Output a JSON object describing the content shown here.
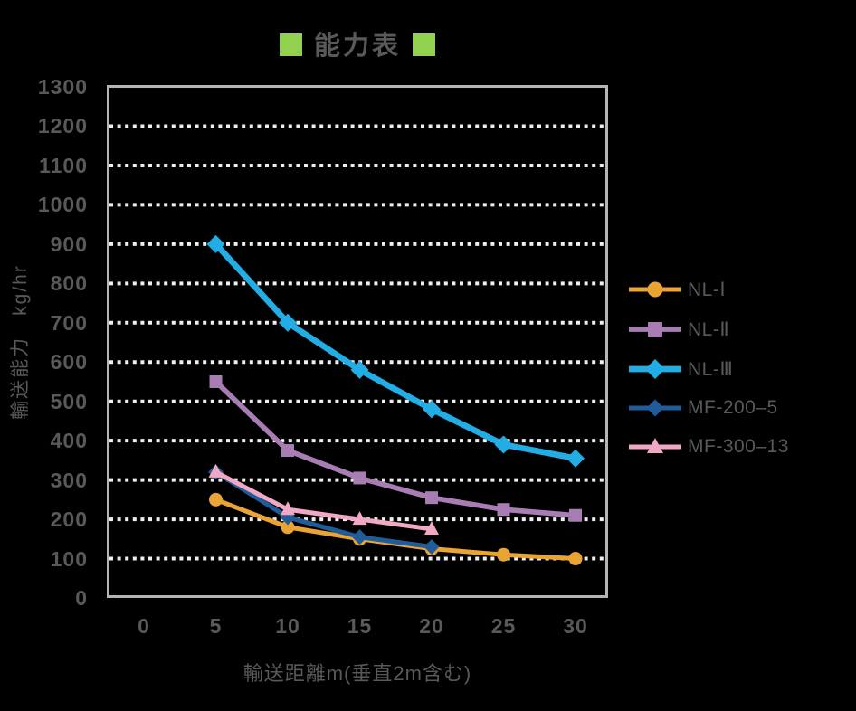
{
  "title": {
    "text": "能力表",
    "square_color": "#92D050"
  },
  "colors": {
    "background": "#000000",
    "text": "#595959",
    "gridline": "#EFEFEF",
    "plot_border": "#B5B5B5"
  },
  "chart_data": {
    "type": "line",
    "title": "能力表",
    "xlabel": "輸送距離m(垂直2m含む)",
    "ylabel": "輸送能力　kg/hr",
    "x_ticks": [
      0,
      5,
      10,
      15,
      20,
      25,
      30
    ],
    "y_ticks": [
      0,
      100,
      200,
      300,
      400,
      500,
      600,
      700,
      800,
      900,
      1000,
      1100,
      1200,
      1300
    ],
    "xlim": [
      0,
      32
    ],
    "ylim": [
      0,
      1300
    ],
    "grid": "horizontal dotted white lines every 100",
    "legend_position": "right",
    "series": [
      {
        "name": "NL-Ⅰ",
        "color": "#EAA434",
        "marker": "circle",
        "x": [
          5,
          10,
          15,
          20,
          25,
          30
        ],
        "values": [
          250,
          180,
          150,
          125,
          110,
          100
        ]
      },
      {
        "name": "NL-Ⅱ",
        "color": "#A87DB3",
        "marker": "square",
        "x": [
          5,
          10,
          15,
          20,
          25,
          30
        ],
        "values": [
          550,
          375,
          305,
          255,
          225,
          210
        ]
      },
      {
        "name": "NL-Ⅲ",
        "color": "#22AEE5",
        "marker": "diamond",
        "x": [
          5,
          10,
          15,
          20,
          25,
          30
        ],
        "values": [
          900,
          700,
          580,
          480,
          390,
          355
        ]
      },
      {
        "name": "MF-200–5",
        "color": "#1F5C99",
        "marker": "diamond",
        "x": [
          5,
          10,
          15,
          20
        ],
        "values": [
          320,
          205,
          155,
          130
        ]
      },
      {
        "name": "MF-300–13",
        "color": "#F1A8C5",
        "marker": "triangle",
        "x": [
          5,
          10,
          15,
          20
        ],
        "values": [
          320,
          225,
          200,
          175
        ]
      }
    ]
  }
}
